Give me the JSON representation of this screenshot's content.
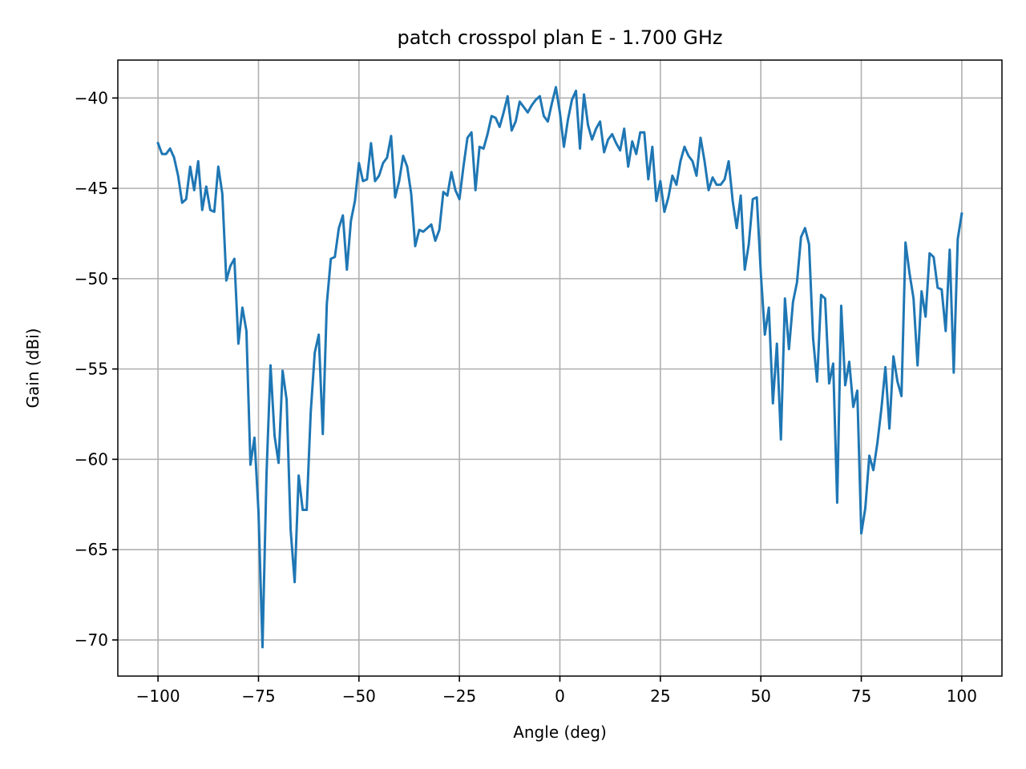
{
  "chart_data": {
    "type": "line",
    "title": "patch crosspol plan E - 1.700 GHz",
    "xlabel": "Angle (deg)",
    "ylabel": "Gain (dBi)",
    "xlim": [
      -110,
      110
    ],
    "ylim": [
      -72,
      -37.9
    ],
    "xticks": [
      -100,
      -75,
      -50,
      -25,
      0,
      25,
      50,
      75,
      100
    ],
    "yticks": [
      -40,
      -45,
      -50,
      -55,
      -60,
      -65,
      -70
    ],
    "xtick_labels": [
      "−100",
      "−75",
      "−50",
      "−25",
      "0",
      "25",
      "50",
      "75",
      "100"
    ],
    "ytick_labels": [
      "−40",
      "−45",
      "−50",
      "−55",
      "−60",
      "−65",
      "−70"
    ],
    "grid": true,
    "line_color": "#1f77b4",
    "series": [
      {
        "x": [
          -100,
          -99,
          -98,
          -97,
          -96,
          -95,
          -94,
          -93,
          -92,
          -91,
          -90,
          -89,
          -88,
          -87,
          -86,
          -85,
          -84,
          -83,
          -82,
          -81,
          -80,
          -79,
          -78,
          -77,
          -76,
          -75,
          -74,
          -73,
          -72,
          -71,
          -70,
          -69,
          -68,
          -67,
          -66,
          -65,
          -64,
          -63,
          -62,
          -61,
          -60,
          -59,
          -58,
          -57,
          -56,
          -55,
          -54,
          -53,
          -52,
          -51,
          -50,
          -49,
          -48,
          -47,
          -46,
          -45,
          -44,
          -43,
          -42,
          -41,
          -40,
          -39,
          -38,
          -37,
          -36,
          -35,
          -34,
          -33,
          -32,
          -31,
          -30,
          -29,
          -28,
          -27,
          -26,
          -25,
          -24,
          -23,
          -22,
          -21,
          -20,
          -19,
          -18,
          -17,
          -16,
          -15,
          -14,
          -13,
          -12,
          -11,
          -10,
          -9,
          -8,
          -7,
          -6,
          -5,
          -4,
          -3,
          -2,
          -1,
          0,
          1,
          2,
          3,
          4,
          5,
          6,
          7,
          8,
          9,
          10,
          11,
          12,
          13,
          14,
          15,
          16,
          17,
          18,
          19,
          20,
          21,
          22,
          23,
          24,
          25,
          26,
          27,
          28,
          29,
          30,
          31,
          32,
          33,
          34,
          35,
          36,
          37,
          38,
          39,
          40,
          41,
          42,
          43,
          44,
          45,
          46,
          47,
          48,
          49,
          50,
          51,
          52,
          53,
          54,
          55,
          56,
          57,
          58,
          59,
          60,
          61,
          62,
          63,
          64,
          65,
          66,
          67,
          68,
          69,
          70,
          71,
          72,
          73,
          74,
          75,
          76,
          77,
          78,
          79,
          80,
          81,
          82,
          83,
          84,
          85,
          86,
          87,
          88,
          89,
          90,
          91,
          92,
          93,
          94,
          95,
          96,
          97,
          98,
          99,
          100
        ],
        "values": [
          -42.5,
          -43.1,
          -43.1,
          -42.8,
          -43.3,
          -44.3,
          -45.8,
          -45.6,
          -43.8,
          -45.1,
          -43.5,
          -46.2,
          -44.9,
          -46.2,
          -46.3,
          -43.8,
          -45.3,
          -50.1,
          -49.3,
          -48.9,
          -53.6,
          -51.6,
          -52.9,
          -60.3,
          -58.8,
          -62.9,
          -70.4,
          -60.8,
          -54.8,
          -58.7,
          -60.2,
          -55.1,
          -56.7,
          -63.9,
          -66.8,
          -60.9,
          -62.8,
          -62.8,
          -57.4,
          -54.1,
          -53.1,
          -58.6,
          -51.4,
          -48.9,
          -48.8,
          -47.2,
          -46.5,
          -49.5,
          -46.8,
          -45.7,
          -43.6,
          -44.6,
          -44.5,
          -42.5,
          -44.6,
          -44.3,
          -43.6,
          -43.3,
          -42.1,
          -45.5,
          -44.6,
          -43.2,
          -43.8,
          -45.3,
          -48.2,
          -47.3,
          -47.4,
          -47.2,
          -47.0,
          -47.9,
          -47.3,
          -45.2,
          -45.4,
          -44.1,
          -45.1,
          -45.6,
          -43.8,
          -42.2,
          -41.9,
          -45.1,
          -42.7,
          -42.8,
          -42.0,
          -41.0,
          -41.1,
          -41.6,
          -40.8,
          -39.9,
          -41.8,
          -41.3,
          -40.2,
          -40.5,
          -40.8,
          -40.4,
          -40.1,
          -39.9,
          -41.0,
          -41.3,
          -40.3,
          -39.4,
          -40.8,
          -42.7,
          -41.2,
          -40.1,
          -39.6,
          -42.8,
          -39.8,
          -41.5,
          -42.3,
          -41.7,
          -41.3,
          -43.0,
          -42.3,
          -42.0,
          -42.5,
          -42.9,
          -41.7,
          -43.8,
          -42.4,
          -43.1,
          -41.9,
          -41.9,
          -44.5,
          -42.7,
          -45.7,
          -44.6,
          -46.3,
          -45.5,
          -44.3,
          -44.8,
          -43.5,
          -42.7,
          -43.2,
          -43.5,
          -44.3,
          -42.2,
          -43.5,
          -45.1,
          -44.4,
          -44.8,
          -44.8,
          -44.5,
          -43.5,
          -45.7,
          -47.2,
          -45.4,
          -49.5,
          -48.1,
          -45.6,
          -45.5,
          -49.7,
          -53.1,
          -51.6,
          -56.9,
          -53.6,
          -58.9,
          -51.1,
          -53.9,
          -51.3,
          -50.2,
          -47.7,
          -47.2,
          -48.1,
          -53.3,
          -55.7,
          -50.9,
          -51.1,
          -55.8,
          -54.7,
          -62.4,
          -51.5,
          -55.9,
          -54.6,
          -57.1,
          -56.2,
          -64.1,
          -62.7,
          -59.8,
          -60.6,
          -59.1,
          -57.2,
          -54.9,
          -58.3,
          -54.3,
          -55.7,
          -56.5,
          -48.0,
          -49.7,
          -51.1,
          -54.8,
          -50.7,
          -52.1,
          -48.6,
          -48.8,
          -50.5,
          -50.6,
          -52.9,
          -48.4,
          -55.2,
          -47.8,
          -46.4
        ]
      }
    ]
  }
}
